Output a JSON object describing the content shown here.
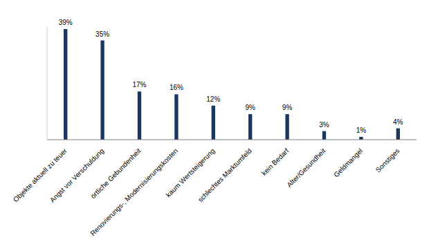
{
  "chart_data": {
    "type": "bar",
    "categories": [
      "Objekte aktuell zu teuer",
      "Angst vor Verschuldung",
      "örtliche Gebundenheit",
      "Renovierungs-, Modernisierungskosten",
      "kaum Wertsteigerung",
      "schlechtes Marktumfeld",
      "kein Bedarf",
      "Alter/Gesundheit",
      "Geldmangel",
      "Sonstiges"
    ],
    "values": [
      39,
      35,
      17,
      16,
      12,
      9,
      9,
      3,
      1,
      4
    ],
    "value_labels": [
      "39%",
      "35%",
      "17%",
      "16%",
      "12%",
      "9%",
      "9%",
      "3%",
      "1%",
      "4%"
    ],
    "color": "#17375e",
    "ylim": [
      0,
      40
    ],
    "data_labels": true,
    "tick_labels": "x",
    "grid": false
  }
}
